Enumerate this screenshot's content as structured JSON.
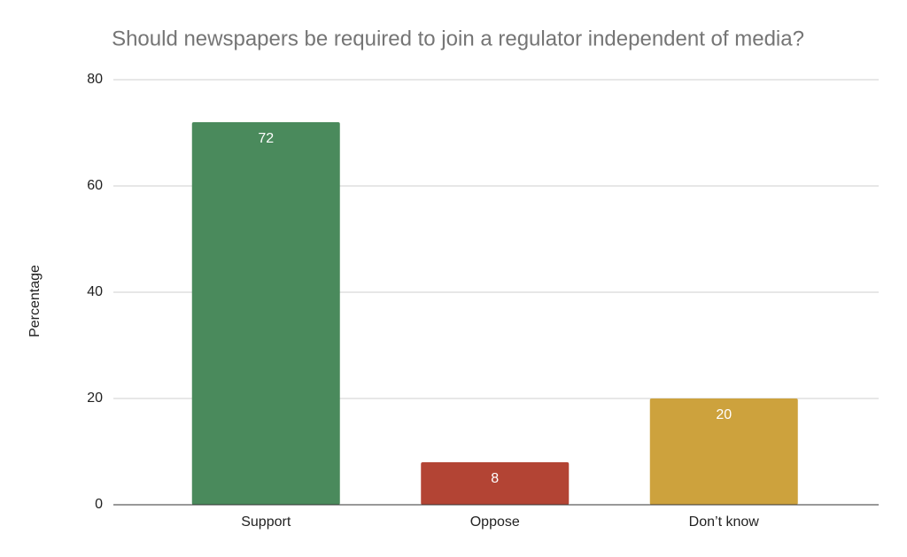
{
  "chart_data": {
    "type": "bar",
    "title": "Should newspapers be required to join a regulator independent of media?",
    "y_label": "Percentage",
    "categories": [
      "Support",
      "Oppose",
      "Don’t know"
    ],
    "values": [
      72,
      8,
      20
    ],
    "colors": [
      "#4a8a5c",
      "#b34434",
      "#cda23d"
    ],
    "ylim": [
      0,
      80
    ],
    "yticks": [
      0,
      20,
      40,
      60,
      80
    ],
    "grid": true
  }
}
